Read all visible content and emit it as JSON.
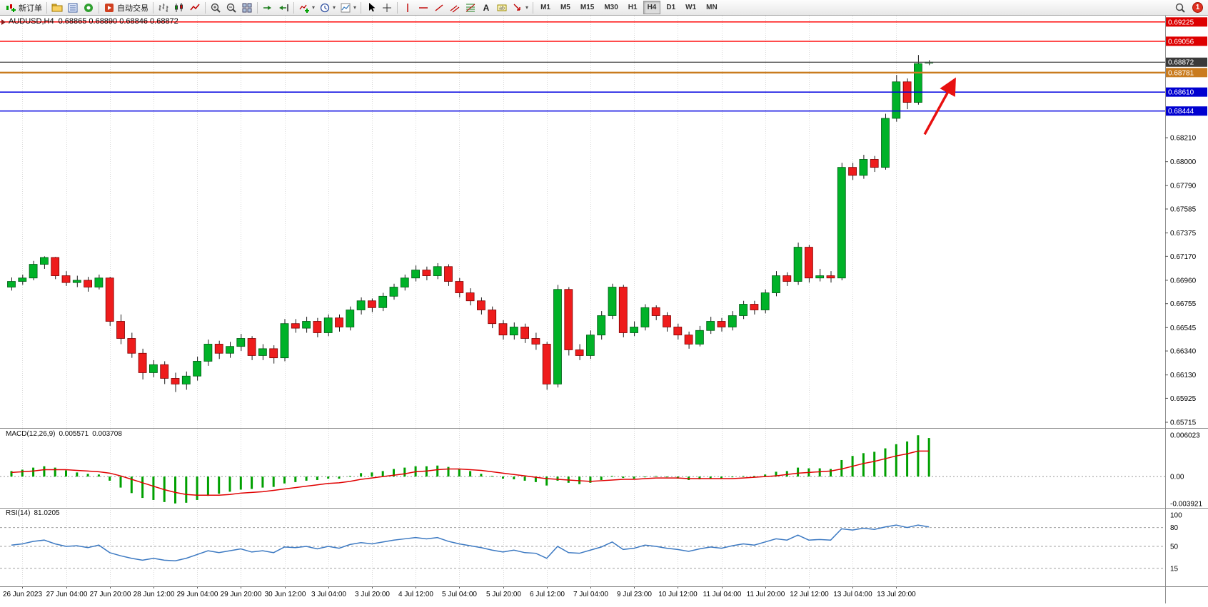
{
  "toolbar": {
    "new_order_label": "新订单",
    "autotrading_label": "自动交易",
    "timeframes": [
      "M1",
      "M5",
      "M15",
      "M30",
      "H1",
      "H4",
      "D1",
      "W1",
      "MN"
    ],
    "active_timeframe": "H4",
    "notification_count": "1"
  },
  "header": {
    "symbol_period": "AUDUSD,H4",
    "ohlc": "0.68865 0.68890 0.68846 0.68872"
  },
  "chart_data": {
    "type": "candlestick",
    "symbol": "AUDUSD",
    "timeframe": "H4",
    "y_range": [
      0.65715,
      0.6928
    ],
    "y_axis_ticks": [
      "0.68210",
      "0.68000",
      "0.67790",
      "0.67585",
      "0.67375",
      "0.67170",
      "0.66960",
      "0.66755",
      "0.66545",
      "0.66340",
      "0.66130",
      "0.65925",
      "0.65715"
    ],
    "x_labels": [
      "26 Jun 2023",
      "27 Jun 04:00",
      "27 Jun 20:00",
      "28 Jun 12:00",
      "29 Jun 04:00",
      "29 Jun 20:00",
      "30 Jun 12:00",
      "3 Jul 04:00",
      "3 Jul 20:00",
      "4 Jul 12:00",
      "5 Jul 04:00",
      "5 Jul 20:00",
      "6 Jul 12:00",
      "7 Jul 04:00",
      "9 Jul 23:00",
      "10 Jul 12:00",
      "11 Jul 04:00",
      "11 Jul 20:00",
      "12 Jul 12:00",
      "13 Jul 04:00",
      "13 Jul 20:00"
    ],
    "hlines": [
      {
        "price": 0.69225,
        "label": "0.69225",
        "line_color": "#FF0000",
        "tag_color": "#DD0000",
        "width": 1.5
      },
      {
        "price": 0.69056,
        "label": "0.69056",
        "line_color": "#FF0000",
        "tag_color": "#DD0000",
        "width": 1.5
      },
      {
        "price": 0.68872,
        "label": "0.68872",
        "line_color": "#4A4A4A",
        "tag_color": "#3A3A3A",
        "width": 1.2
      },
      {
        "price": 0.68781,
        "label": "0.68781",
        "line_color": "#C97B1E",
        "tag_color": "#C97B1E",
        "width": 2.4
      },
      {
        "price": 0.6861,
        "label": "0.68610",
        "line_color": "#0000E0",
        "tag_color": "#0000D0",
        "width": 1.5
      },
      {
        "price": 0.68444,
        "label": "0.68444",
        "line_color": "#0000E0",
        "tag_color": "#0000D0",
        "width": 1.5
      }
    ],
    "arrow": {
      "from_bar": 83.6,
      "from_price": 0.6824,
      "to_bar": 86.3,
      "to_price": 0.6871,
      "color": "#E81010"
    },
    "candles": [
      [
        0.669,
        0.66985,
        0.6687,
        0.6695
      ],
      [
        0.6695,
        0.6701,
        0.6692,
        0.6698
      ],
      [
        0.6698,
        0.6713,
        0.6696,
        0.671
      ],
      [
        0.671,
        0.6717,
        0.6706,
        0.6716
      ],
      [
        0.6716,
        0.67165,
        0.6697,
        0.67
      ],
      [
        0.67,
        0.6704,
        0.6691,
        0.6694
      ],
      [
        0.6694,
        0.67,
        0.669,
        0.6696
      ],
      [
        0.6696,
        0.6699,
        0.6686,
        0.669
      ],
      [
        0.669,
        0.6701,
        0.6688,
        0.6698
      ],
      [
        0.6698,
        0.6699,
        0.6656,
        0.666
      ],
      [
        0.666,
        0.6666,
        0.664,
        0.6645
      ],
      [
        0.6645,
        0.665,
        0.6628,
        0.6632
      ],
      [
        0.6632,
        0.6636,
        0.6609,
        0.6615
      ],
      [
        0.6615,
        0.6626,
        0.6611,
        0.6622
      ],
      [
        0.6622,
        0.6625,
        0.6605,
        0.661
      ],
      [
        0.661,
        0.6615,
        0.6598,
        0.6605
      ],
      [
        0.6605,
        0.6616,
        0.66,
        0.6612
      ],
      [
        0.6612,
        0.6629,
        0.6608,
        0.6625
      ],
      [
        0.6625,
        0.6644,
        0.6621,
        0.664
      ],
      [
        0.664,
        0.6643,
        0.6627,
        0.6632
      ],
      [
        0.6632,
        0.6642,
        0.6628,
        0.6638
      ],
      [
        0.6638,
        0.6649,
        0.6634,
        0.6645
      ],
      [
        0.6645,
        0.6647,
        0.6626,
        0.663
      ],
      [
        0.663,
        0.664,
        0.6626,
        0.6636
      ],
      [
        0.6636,
        0.6639,
        0.6623,
        0.6628
      ],
      [
        0.6628,
        0.6662,
        0.6625,
        0.6658
      ],
      [
        0.6658,
        0.6662,
        0.665,
        0.6654
      ],
      [
        0.6654,
        0.6664,
        0.665,
        0.666
      ],
      [
        0.666,
        0.6663,
        0.6646,
        0.665
      ],
      [
        0.665,
        0.6666,
        0.6647,
        0.6663
      ],
      [
        0.6663,
        0.6666,
        0.6651,
        0.6655
      ],
      [
        0.6655,
        0.6673,
        0.6652,
        0.667
      ],
      [
        0.667,
        0.6681,
        0.6666,
        0.6678
      ],
      [
        0.6678,
        0.668,
        0.6668,
        0.6672
      ],
      [
        0.6672,
        0.6685,
        0.6669,
        0.6682
      ],
      [
        0.6682,
        0.6693,
        0.6679,
        0.669
      ],
      [
        0.669,
        0.6701,
        0.6687,
        0.6698
      ],
      [
        0.6698,
        0.6709,
        0.6695,
        0.6705
      ],
      [
        0.6705,
        0.6708,
        0.6696,
        0.67
      ],
      [
        0.67,
        0.6711,
        0.6697,
        0.6708
      ],
      [
        0.6708,
        0.671,
        0.6691,
        0.6695
      ],
      [
        0.6695,
        0.6698,
        0.6681,
        0.6685
      ],
      [
        0.6685,
        0.6689,
        0.6674,
        0.6678
      ],
      [
        0.6678,
        0.6681,
        0.6666,
        0.667
      ],
      [
        0.667,
        0.6673,
        0.6654,
        0.6658
      ],
      [
        0.6658,
        0.6661,
        0.6644,
        0.6648
      ],
      [
        0.6648,
        0.6659,
        0.6644,
        0.6655
      ],
      [
        0.6655,
        0.6658,
        0.6641,
        0.6645
      ],
      [
        0.6645,
        0.665,
        0.6635,
        0.664
      ],
      [
        0.664,
        0.6642,
        0.66,
        0.6605
      ],
      [
        0.6605,
        0.6692,
        0.6602,
        0.6688
      ],
      [
        0.6688,
        0.669,
        0.663,
        0.6635
      ],
      [
        0.6635,
        0.664,
        0.6626,
        0.663
      ],
      [
        0.663,
        0.6652,
        0.6627,
        0.6648
      ],
      [
        0.6648,
        0.6669,
        0.6644,
        0.6665
      ],
      [
        0.6665,
        0.6693,
        0.6662,
        0.669
      ],
      [
        0.669,
        0.6692,
        0.6646,
        0.665
      ],
      [
        0.665,
        0.666,
        0.6647,
        0.6655
      ],
      [
        0.6655,
        0.6675,
        0.6652,
        0.6672
      ],
      [
        0.6672,
        0.6674,
        0.6661,
        0.6665
      ],
      [
        0.6665,
        0.6668,
        0.6651,
        0.6655
      ],
      [
        0.6655,
        0.6658,
        0.6644,
        0.6648
      ],
      [
        0.6648,
        0.6651,
        0.6636,
        0.664
      ],
      [
        0.664,
        0.6656,
        0.6638,
        0.6652
      ],
      [
        0.6652,
        0.6664,
        0.6649,
        0.666
      ],
      [
        0.666,
        0.6663,
        0.6651,
        0.6655
      ],
      [
        0.6655,
        0.6669,
        0.6652,
        0.6665
      ],
      [
        0.6665,
        0.6678,
        0.6662,
        0.6675
      ],
      [
        0.6675,
        0.6678,
        0.6666,
        0.667
      ],
      [
        0.667,
        0.6688,
        0.6667,
        0.6685
      ],
      [
        0.6685,
        0.6704,
        0.6682,
        0.67
      ],
      [
        0.67,
        0.6703,
        0.6691,
        0.6695
      ],
      [
        0.6695,
        0.6729,
        0.6692,
        0.6725
      ],
      [
        0.6725,
        0.6727,
        0.6694,
        0.6698
      ],
      [
        0.6698,
        0.6706,
        0.6695,
        0.67
      ],
      [
        0.67,
        0.6704,
        0.6694,
        0.6698
      ],
      [
        0.6698,
        0.6799,
        0.6696,
        0.6795
      ],
      [
        0.6795,
        0.6799,
        0.6784,
        0.6788
      ],
      [
        0.6788,
        0.6806,
        0.6785,
        0.6802
      ],
      [
        0.6802,
        0.6805,
        0.6791,
        0.6795
      ],
      [
        0.6795,
        0.6842,
        0.6793,
        0.6838
      ],
      [
        0.6838,
        0.6876,
        0.6835,
        0.687
      ],
      [
        0.687,
        0.6873,
        0.6846,
        0.6852
      ],
      [
        0.6852,
        0.68935,
        0.685,
        0.6886
      ],
      [
        0.68865,
        0.6889,
        0.68846,
        0.68872
      ]
    ],
    "macd": {
      "label": "MACD(12,26,9)",
      "value": "0.005571",
      "signal_value": "0.003708",
      "scale_labels": [
        "0.006023",
        "0.00",
        "-0.003921"
      ],
      "scale": [
        -0.003921,
        0.006023
      ],
      "histogram": [
        0.0008,
        0.001,
        0.0013,
        0.0015,
        0.0013,
        0.0009,
        0.0006,
        0.0004,
        0.0003,
        -0.0006,
        -0.0016,
        -0.0024,
        -0.0031,
        -0.0034,
        -0.0037,
        -0.0039,
        -0.0038,
        -0.0034,
        -0.0028,
        -0.0025,
        -0.0022,
        -0.0019,
        -0.0018,
        -0.0016,
        -0.0015,
        -0.001,
        -0.0008,
        -0.0006,
        -0.0005,
        -0.0003,
        -0.0003,
        0.0001,
        0.0005,
        0.0006,
        0.0008,
        0.0011,
        0.0013,
        0.0015,
        0.0015,
        0.0016,
        0.0014,
        0.0011,
        0.0008,
        0.0004,
        0.0001,
        -0.0003,
        -0.0004,
        -0.0006,
        -0.0008,
        -0.0013,
        -0.0006,
        -0.0009,
        -0.0011,
        -0.0009,
        -0.0005,
        0.0001,
        -0.0002,
        -0.0003,
        0.0,
        0.0001,
        -0.0001,
        -0.0003,
        -0.0005,
        -0.0004,
        -0.0003,
        -0.0003,
        -0.0001,
        0.0001,
        0.0001,
        0.0003,
        0.0007,
        0.0008,
        0.0013,
        0.0012,
        0.0012,
        0.0011,
        0.0024,
        0.003,
        0.0034,
        0.0036,
        0.0041,
        0.0047,
        0.0051,
        0.006,
        0.0056
      ],
      "signal": [
        0.0006,
        0.0007,
        0.0008,
        0.001,
        0.001,
        0.001,
        0.0009,
        0.0008,
        0.0007,
        0.0005,
        0.0001,
        -0.0004,
        -0.0009,
        -0.0014,
        -0.0019,
        -0.0023,
        -0.0026,
        -0.0027,
        -0.0027,
        -0.0027,
        -0.0026,
        -0.0024,
        -0.0023,
        -0.0022,
        -0.002,
        -0.0018,
        -0.0016,
        -0.0014,
        -0.0012,
        -0.001,
        -0.0009,
        -0.0007,
        -0.0004,
        -0.0002,
        0.0,
        0.0002,
        0.0004,
        0.0007,
        0.0008,
        0.001,
        0.0011,
        0.0011,
        0.001,
        0.0009,
        0.0007,
        0.0005,
        0.0003,
        0.0001,
        -0.0001,
        -0.0003,
        -0.0004,
        -0.0005,
        -0.0006,
        -0.0007,
        -0.0006,
        -0.0005,
        -0.0004,
        -0.0004,
        -0.0003,
        -0.0002,
        -0.0002,
        -0.0002,
        -0.0003,
        -0.0003,
        -0.0003,
        -0.0003,
        -0.0003,
        -0.0002,
        -0.0001,
        0.0,
        0.0001,
        0.0003,
        0.0005,
        0.0006,
        0.0007,
        0.0008,
        0.0011,
        0.0015,
        0.0019,
        0.0022,
        0.0026,
        0.003,
        0.0033,
        0.0037,
        0.0037
      ]
    },
    "rsi": {
      "label": "RSI(14)",
      "value": "81.0205",
      "levels": [
        100,
        80,
        50,
        15
      ],
      "level_labels": [
        "100",
        "80",
        "50",
        "15"
      ],
      "values": [
        52,
        54,
        58,
        60,
        54,
        50,
        51,
        48,
        52,
        40,
        35,
        31,
        28,
        31,
        28,
        27,
        31,
        37,
        43,
        40,
        43,
        46,
        41,
        43,
        40,
        49,
        48,
        50,
        46,
        50,
        47,
        53,
        56,
        54,
        57,
        60,
        62,
        64,
        62,
        64,
        58,
        54,
        51,
        48,
        44,
        41,
        44,
        40,
        39,
        31,
        50,
        40,
        39,
        44,
        49,
        57,
        45,
        47,
        52,
        50,
        47,
        45,
        42,
        46,
        49,
        47,
        51,
        54,
        52,
        57,
        62,
        60,
        68,
        60,
        61,
        60,
        78,
        76,
        79,
        77,
        81,
        84,
        80,
        84,
        81
      ]
    }
  }
}
